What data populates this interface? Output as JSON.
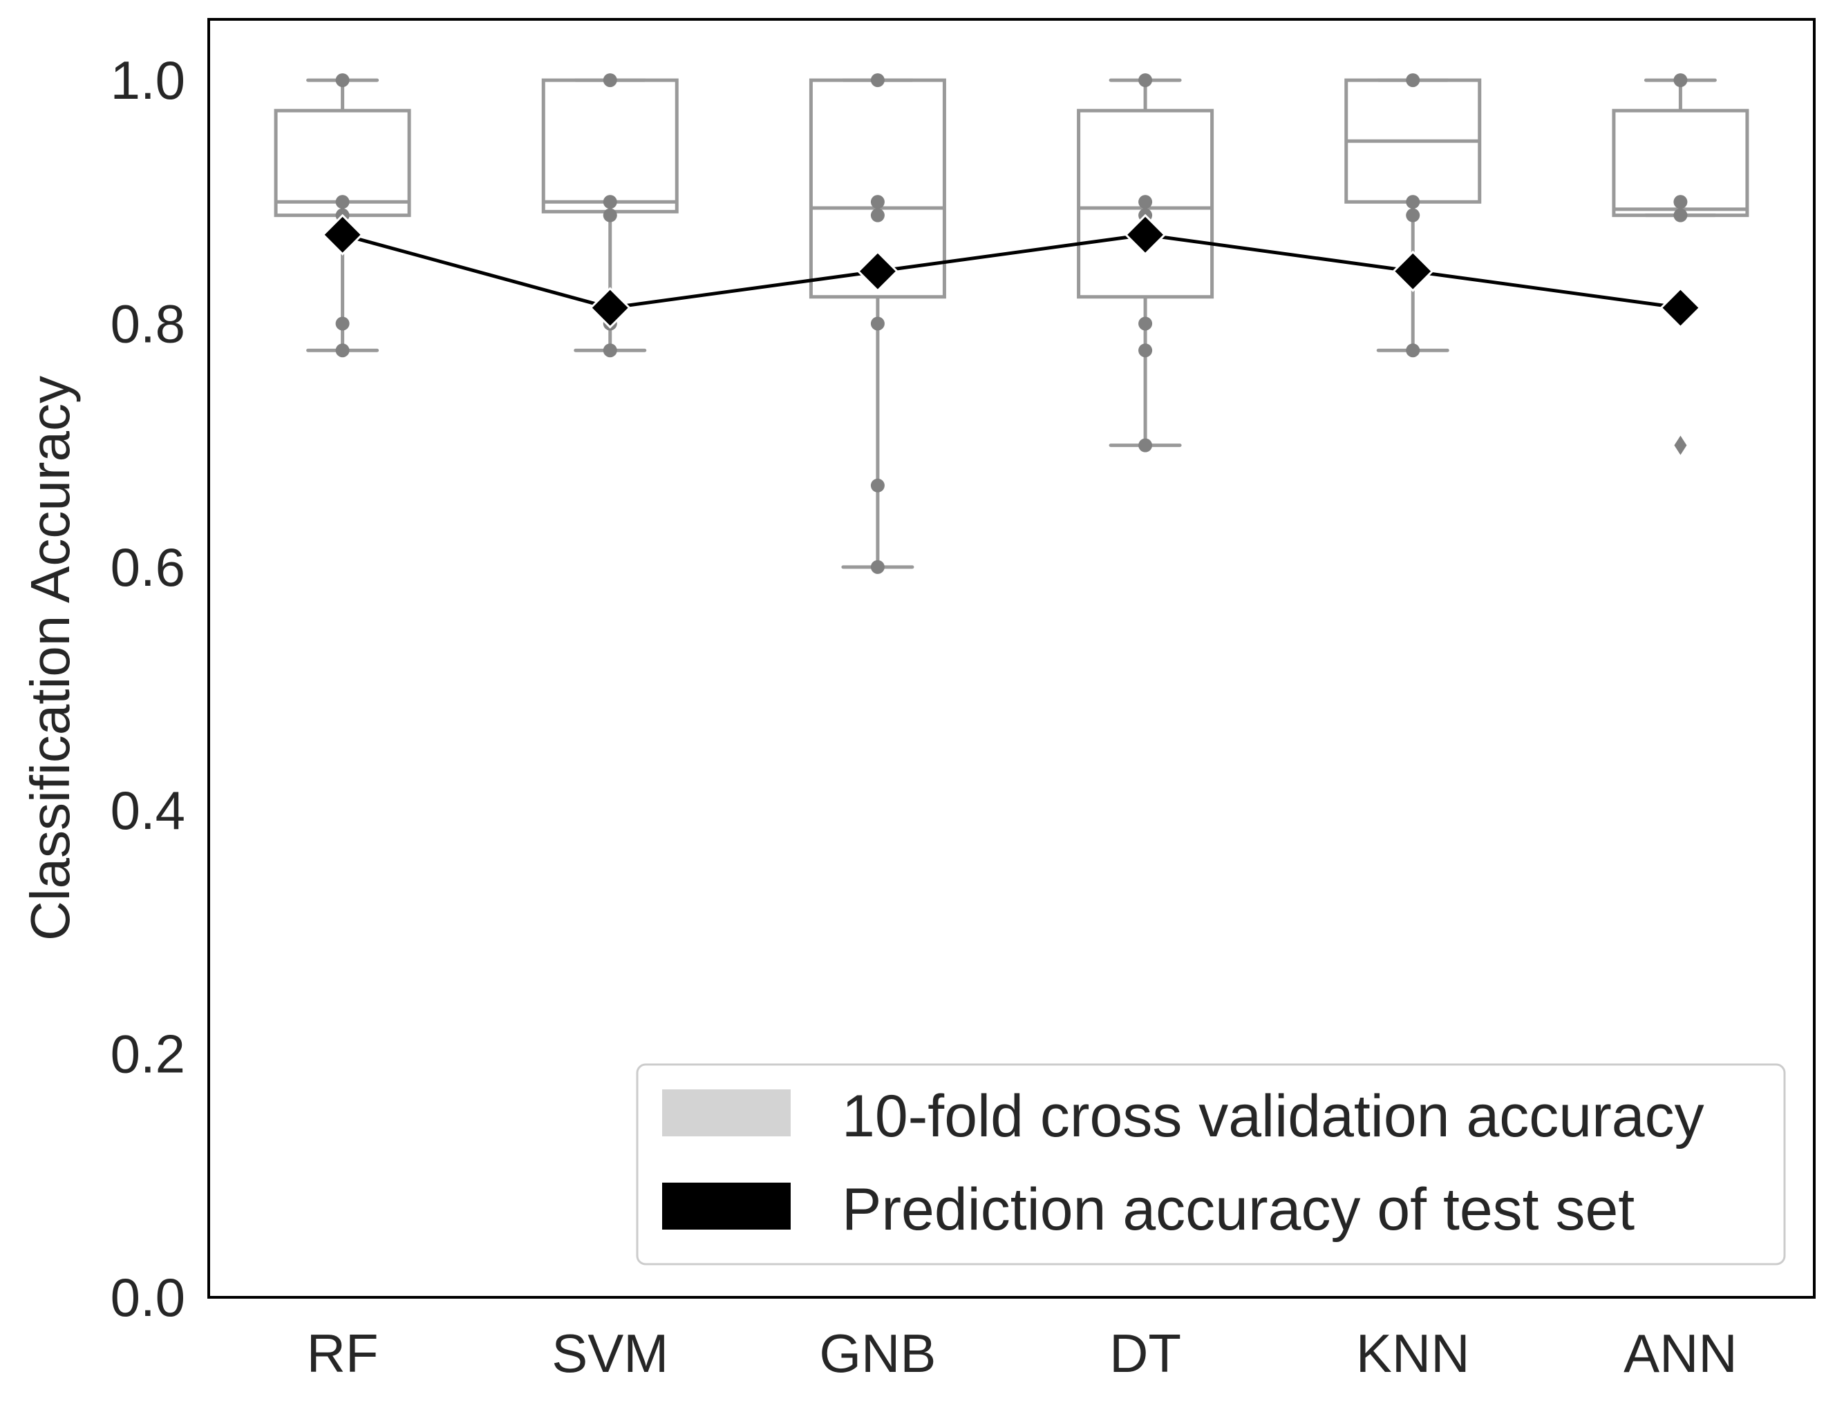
{
  "chart_data": {
    "type": "box",
    "title": "",
    "xlabel": "",
    "ylabel": "Classification Accuracy",
    "ylim": [
      0.0,
      1.05
    ],
    "yticks": [
      "0.0",
      "0.2",
      "0.4",
      "0.6",
      "0.8",
      "1.0"
    ],
    "grid": false,
    "legend_position": "lower-right",
    "categories": [
      "RF",
      "SVM",
      "GNB",
      "DT",
      "KNN",
      "ANN"
    ],
    "box_series": {
      "name": "10-fold cross validation accuracy",
      "boxes": [
        {
          "whisker_low": 0.778,
          "q1": 0.889,
          "median": 0.9,
          "q3": 0.975,
          "whisker_high": 1.0,
          "points": [
            1.0,
            0.9,
            0.889,
            0.8,
            0.778
          ],
          "fliers": []
        },
        {
          "whisker_low": 0.778,
          "q1": 0.892,
          "median": 0.9,
          "q3": 1.0,
          "whisker_high": 1.0,
          "points": [
            1.0,
            0.9,
            0.889,
            0.8,
            0.778
          ],
          "fliers": []
        },
        {
          "whisker_low": 0.6,
          "q1": 0.822,
          "median": 0.895,
          "q3": 1.0,
          "whisker_high": 1.0,
          "points": [
            1.0,
            0.9,
            0.889,
            0.8,
            0.667,
            0.6
          ],
          "fliers": []
        },
        {
          "whisker_low": 0.7,
          "q1": 0.822,
          "median": 0.895,
          "q3": 0.975,
          "whisker_high": 1.0,
          "points": [
            1.0,
            0.9,
            0.889,
            0.8,
            0.778,
            0.7
          ],
          "fliers": []
        },
        {
          "whisker_low": 0.778,
          "q1": 0.9,
          "median": 0.95,
          "q3": 1.0,
          "whisker_high": 1.0,
          "points": [
            1.0,
            0.9,
            0.889,
            0.778
          ],
          "fliers": []
        },
        {
          "whisker_low": 0.889,
          "q1": 0.889,
          "median": 0.894,
          "q3": 0.975,
          "whisker_high": 1.0,
          "points": [
            1.0,
            0.9,
            0.889
          ],
          "fliers": [
            0.7
          ]
        }
      ]
    },
    "line_series": {
      "name": "Prediction accuracy of test set",
      "values": [
        0.873,
        0.813,
        0.843,
        0.873,
        0.843,
        0.813
      ]
    },
    "colors": {
      "box": "#999999",
      "points": "#808080",
      "legend_box_patch": "#d3d3d3",
      "line": "#000000",
      "text": "#262626"
    }
  }
}
